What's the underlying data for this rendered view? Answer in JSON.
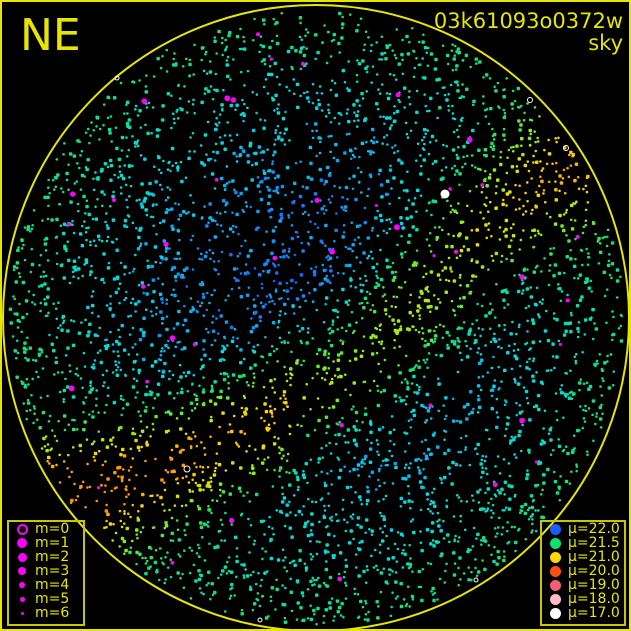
{
  "header": {
    "direction": "NE",
    "frame_id": "03k61093o0372w",
    "frame_type": "sky"
  },
  "colors": {
    "frame": "#e6e600",
    "background": "#000000",
    "star": "#ff00ff"
  },
  "chart_data": {
    "type": "scatter",
    "title": "",
    "magnitude_legend": [
      {
        "label": "m=0",
        "style": "ring"
      },
      {
        "label": "m=1",
        "size": 5
      },
      {
        "label": "m=2",
        "size": 4.5
      },
      {
        "label": "m=3",
        "size": 4
      },
      {
        "label": "m=4",
        "size": 3
      },
      {
        "label": "m=5",
        "size": 2.5
      },
      {
        "label": "m=6",
        "size": 1.5
      }
    ],
    "brightness_legend": [
      {
        "label": "μ=22.0",
        "mu": 22.0,
        "color": "#1a5cff"
      },
      {
        "label": "μ=21.5",
        "mu": 21.5,
        "color": "#10e070"
      },
      {
        "label": "μ=21.0",
        "mu": 21.0,
        "color": "#ffd800"
      },
      {
        "label": "μ=20.0",
        "mu": 20.0,
        "color": "#ff5010"
      },
      {
        "label": "μ=19.0",
        "mu": 19.0,
        "color": "#f06070"
      },
      {
        "label": "μ=18.0",
        "mu": 18.0,
        "color": "#ffb8c8"
      },
      {
        "label": "μ=17.0",
        "mu": 17.0,
        "color": "#ffffff"
      }
    ]
  }
}
